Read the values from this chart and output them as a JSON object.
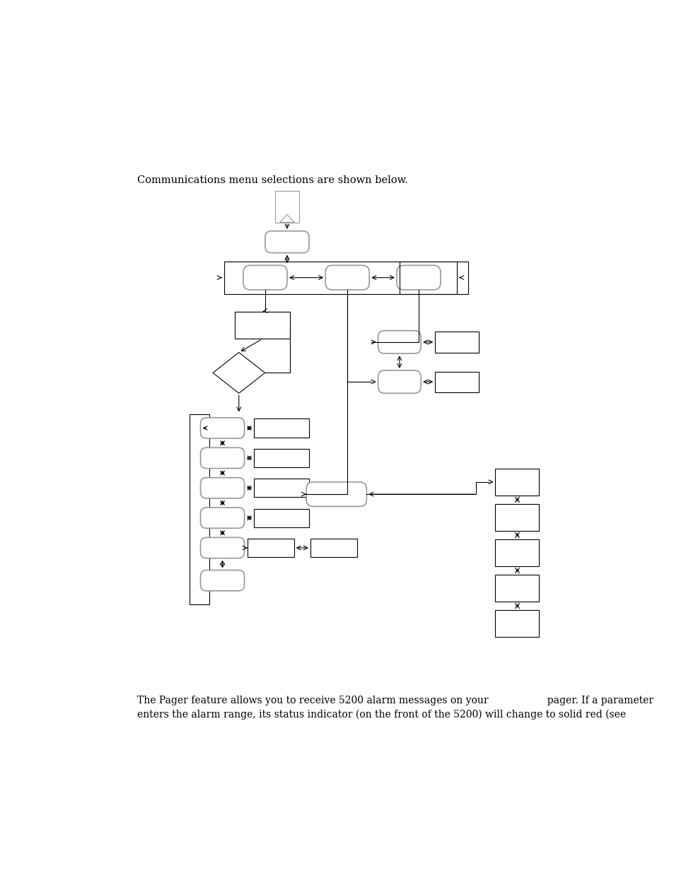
{
  "title_text": "Communications menu selections are shown below.",
  "footer_line1": "The Pager feature allows you to receive 5200 alarm messages on your                   pager. If a parameter",
  "footer_line2": "enters the alarm range, its status indicator (on the front of the 5200) will change to solid red (see",
  "bg_color": "#ffffff",
  "line_color": "#000000",
  "shape_fill": "#ffffff",
  "gray_edge": "#999999",
  "black_edge": "#000000"
}
